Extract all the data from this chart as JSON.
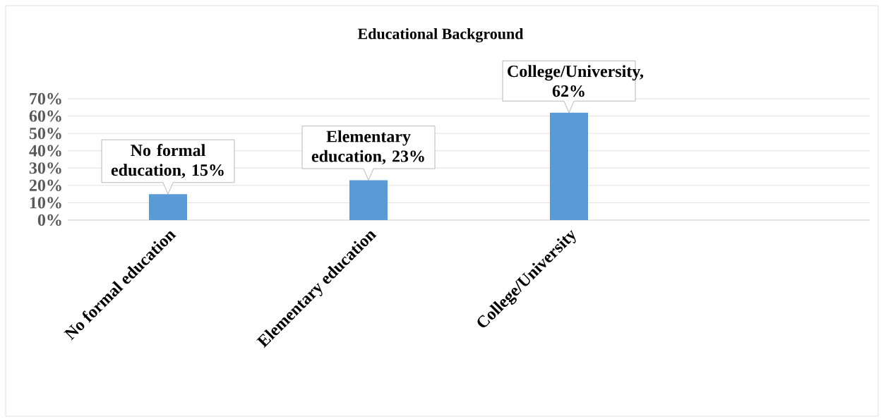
{
  "chart_data": {
    "type": "bar",
    "title": "Educational Background",
    "categories": [
      "No formal education",
      "Elementary education",
      "College/University",
      null
    ],
    "values": [
      15,
      23,
      62,
      null
    ],
    "value_labels": [
      "No formal education, 15%",
      "Elementary education, 23%",
      "College/University, 62%",
      null
    ],
    "color": "#5b9bd5",
    "ylim": [
      0,
      70
    ],
    "yticks": [
      {
        "value": 0,
        "label": "0%"
      },
      {
        "value": 10,
        "label": "10%"
      },
      {
        "value": 20,
        "label": "20%"
      },
      {
        "value": 30,
        "label": "30%"
      },
      {
        "value": 40,
        "label": "40%"
      },
      {
        "value": 50,
        "label": "50%"
      },
      {
        "value": 60,
        "label": "60%"
      },
      {
        "value": 70,
        "label": "70%"
      }
    ],
    "grid": "y"
  }
}
